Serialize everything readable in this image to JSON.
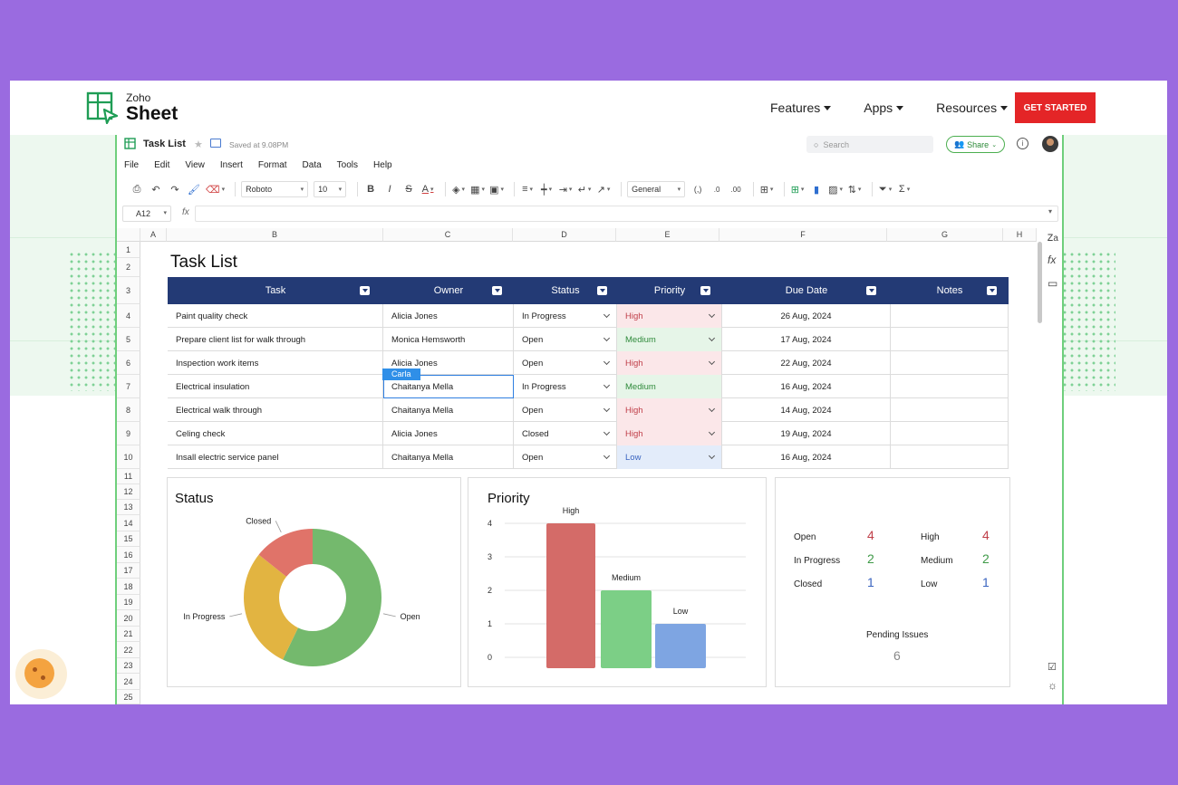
{
  "site": {
    "logo_small": "Zoho",
    "logo_big": "Sheet",
    "nav": [
      {
        "label": "Features"
      },
      {
        "label": "Apps"
      },
      {
        "label": "Resources"
      }
    ],
    "cta": "GET STARTED"
  },
  "app": {
    "title": "Task List",
    "saved": "Saved at 9.08PM",
    "search_placeholder": "Search",
    "share": "Share",
    "menu": [
      "File",
      "Edit",
      "View",
      "Insert",
      "Format",
      "Data",
      "Tools",
      "Help"
    ],
    "toolbar": {
      "font": "Roboto",
      "size": "10",
      "number_format": "General",
      "comma": "(,)"
    },
    "name_box": "A12",
    "fx": "fx"
  },
  "grid": {
    "columns": [
      "A",
      "B",
      "C",
      "D",
      "E",
      "F",
      "G",
      "H"
    ],
    "rows": [
      "1",
      "2",
      "3",
      "4",
      "5",
      "6",
      "7",
      "8",
      "9",
      "10",
      "11",
      "12",
      "13",
      "14",
      "15",
      "16",
      "17",
      "18",
      "19",
      "20",
      "21",
      "22",
      "23",
      "24",
      "25"
    ]
  },
  "sheet": {
    "title": "Task List",
    "headers": [
      "Task",
      "Owner",
      "Status",
      "Priority",
      "Due Date",
      "Notes"
    ],
    "rows": [
      {
        "task": "Paint quality check",
        "owner": "Alicia Jones",
        "status": "In Progress",
        "priority": "High",
        "due": "26 Aug, 2024",
        "notes": ""
      },
      {
        "task": "Prepare client list for walk through",
        "owner": "Monica Hemsworth",
        "status": "Open",
        "priority": "Medium",
        "due": "17 Aug, 2024",
        "notes": ""
      },
      {
        "task": "Inspection work items",
        "owner": "Alicia Jones",
        "status": "Open",
        "priority": "High",
        "due": "22 Aug, 2024",
        "notes": ""
      },
      {
        "task": "Electrical insulation",
        "owner": "Chaitanya Mella",
        "status": "In Progress",
        "priority": "Medium",
        "due": "16 Aug, 2024",
        "notes": ""
      },
      {
        "task": "Electrical walk through",
        "owner": "Chaitanya Mella",
        "status": "Open",
        "priority": "High",
        "due": "14 Aug, 2024",
        "notes": ""
      },
      {
        "task": "Celing check",
        "owner": "Alicia Jones",
        "status": "Closed",
        "priority": "High",
        "due": "19 Aug, 2024",
        "notes": ""
      },
      {
        "task": "Insall electric service panel",
        "owner": "Chaitanya Mella",
        "status": "Open",
        "priority": "Low",
        "due": "16 Aug, 2024",
        "notes": ""
      }
    ],
    "collaborator_tag": "Carla"
  },
  "chart_data": [
    {
      "type": "pie",
      "title": "Status",
      "categories": [
        "Open",
        "In Progress",
        "Closed"
      ],
      "values": [
        4,
        2,
        1
      ],
      "colors": [
        "#74b96d",
        "#e2b441",
        "#e07369"
      ],
      "donut": true
    },
    {
      "type": "bar",
      "title": "Priority",
      "categories": [
        "High",
        "Medium",
        "Low"
      ],
      "values": [
        4,
        2,
        1
      ],
      "colors": [
        "#d46b68",
        "#7ccf86",
        "#7ea5e2"
      ],
      "ylim": [
        0,
        4
      ],
      "yticks": [
        "0",
        "1",
        "2",
        "3",
        "4"
      ],
      "grid": true
    }
  ],
  "summary": {
    "status": [
      {
        "label": "Open",
        "value": "4",
        "color": "#c0404a"
      },
      {
        "label": "In Progress",
        "value": "2",
        "color": "#3f9a48"
      },
      {
        "label": "Closed",
        "value": "1",
        "color": "#3a64c0"
      }
    ],
    "priority": [
      {
        "label": "High",
        "value": "4",
        "color": "#c0404a"
      },
      {
        "label": "Medium",
        "value": "2",
        "color": "#3f9a48"
      },
      {
        "label": "Low",
        "value": "1",
        "color": "#3a64c0"
      }
    ],
    "pending_label": "Pending Issues",
    "pending_value": "6"
  }
}
